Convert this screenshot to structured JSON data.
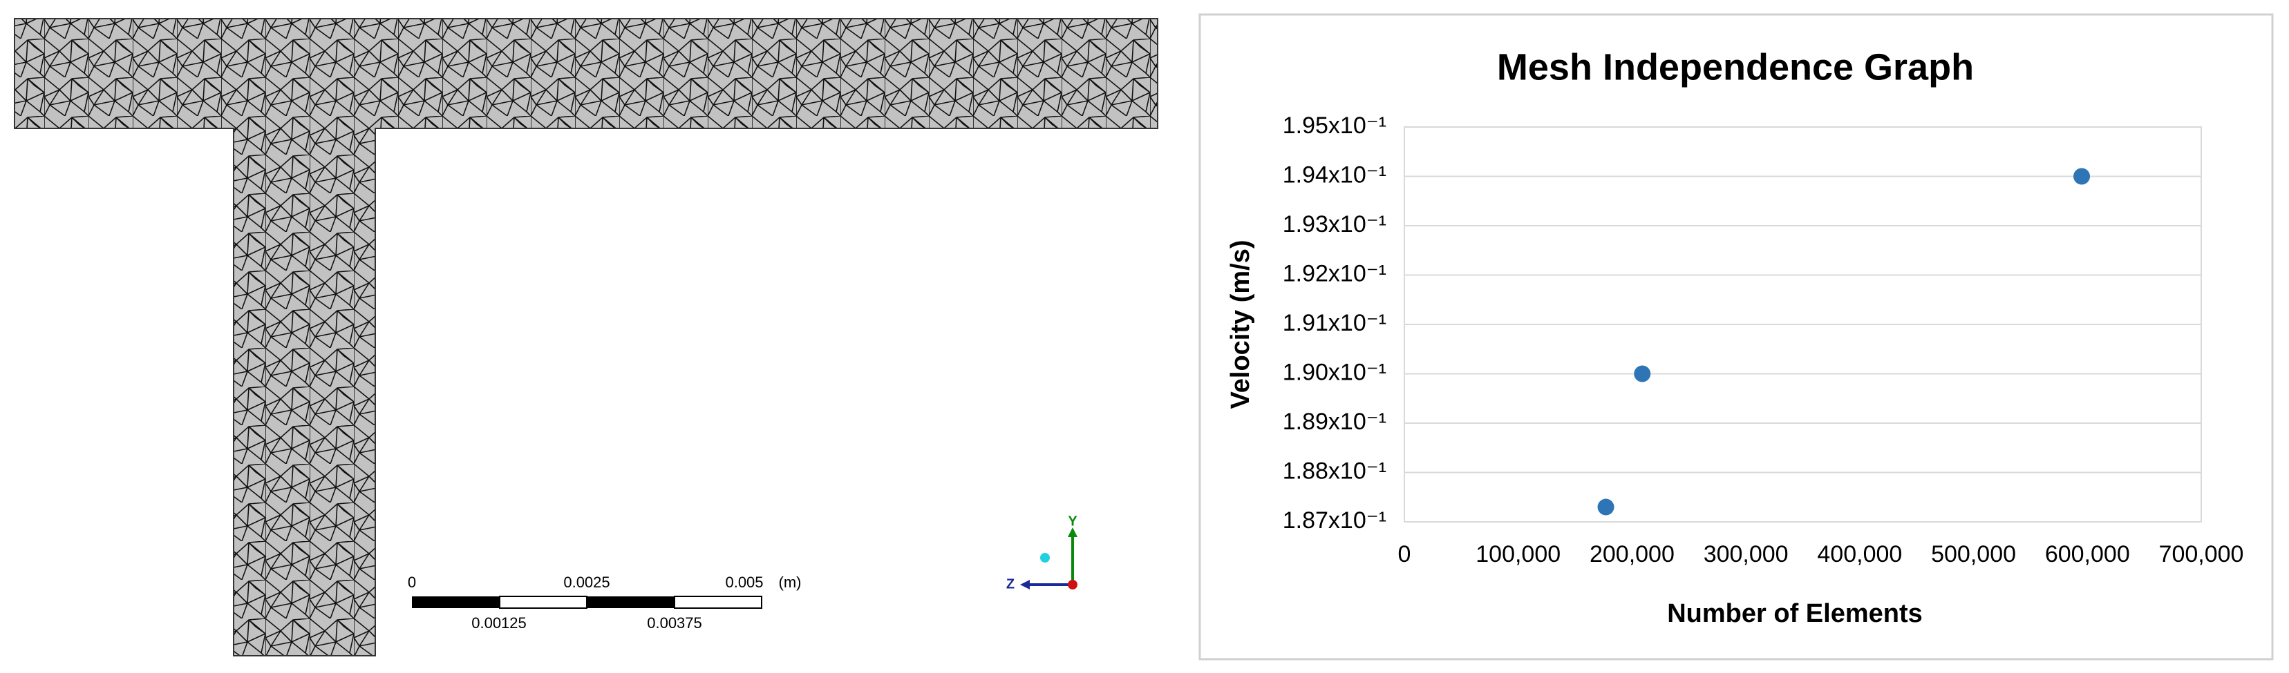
{
  "mesh_view": {
    "scale_labels": [
      "0",
      "0.0025",
      "0.005",
      "(m)",
      "0.00125",
      "0.00375"
    ],
    "axes": [
      "Y",
      "Z"
    ]
  },
  "chart_data": {
    "type": "scatter",
    "title": "Mesh Independence Graph",
    "x_label": "Number of Elements",
    "y_label": "Velocity (m/s)",
    "series": [
      {
        "name": "Velocity",
        "color": "#2e75b6",
        "x": [
          177000,
          209000,
          595000
        ],
        "values": [
          0.1873,
          0.19,
          0.194
        ]
      }
    ],
    "xlim": [
      0,
      700000
    ],
    "xticks": [
      0,
      {
        "value": 100000,
        "label": "100,000"
      },
      {
        "value": 200000,
        "label": "200,000"
      },
      {
        "value": 300000,
        "label": "300,000"
      },
      {
        "value": 400000,
        "label": "400,000"
      },
      {
        "value": 500000,
        "label": "500,000"
      },
      {
        "value": 600000,
        "label": "600,000"
      },
      {
        "value": 700000,
        "label": "700,000"
      }
    ],
    "ylim": [
      0.187,
      0.195
    ],
    "yticks": [
      {
        "value": 0.187,
        "label": "1.87x10⁻¹"
      },
      {
        "value": 0.188,
        "label": "1.88x10⁻¹"
      },
      {
        "value": 0.189,
        "label": "1.89x10⁻¹"
      },
      {
        "value": 0.19,
        "label": "1.90x10⁻¹"
      },
      {
        "value": 0.191,
        "label": "1.91x10⁻¹"
      },
      {
        "value": 0.192,
        "label": "1.92x10⁻¹"
      },
      {
        "value": 0.193,
        "label": "1.93x10⁻¹"
      },
      {
        "value": 0.194,
        "label": "1.94x10⁻¹"
      },
      {
        "value": 0.195,
        "label": "1.95x10⁻¹"
      }
    ],
    "grid": true
  }
}
